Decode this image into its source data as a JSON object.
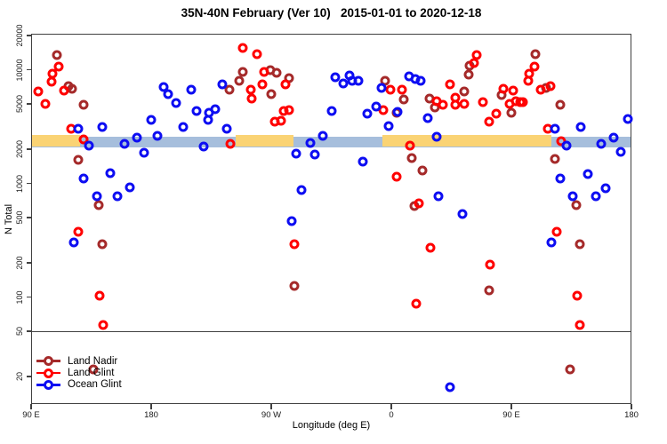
{
  "title": "35N-40N February (Ver 10)   2015-01-01 to 2020-12-18",
  "chart_data": {
    "type": "scatter",
    "title": "35N-40N February (Ver 10)   2015-01-01 to 2020-12-18",
    "xlabel": "Longitude (deg E)",
    "ylabel": "N Total",
    "x_axis": {
      "deg_span": 450,
      "note": "longitude axis wraps: starts at 90E, passes dateline, ends at 180",
      "ticks": [
        {
          "deg": 0,
          "label": "90 E"
        },
        {
          "deg": 90,
          "label": "180"
        },
        {
          "deg": 180,
          "label": "90 W"
        },
        {
          "deg": 270,
          "label": "0"
        },
        {
          "deg": 360,
          "label": "90 E"
        },
        {
          "deg": 450,
          "label": "180"
        }
      ]
    },
    "y_axis": {
      "scale": "log10",
      "log_top": 4.317,
      "log_bottom": 1.059,
      "ticks": [
        {
          "v": 20,
          "label": "20"
        },
        {
          "v": 50,
          "label": "50"
        },
        {
          "v": 100,
          "label": "100"
        },
        {
          "v": 200,
          "label": "200"
        },
        {
          "v": 500,
          "label": "500"
        },
        {
          "v": 1000,
          "label": "1000"
        },
        {
          "v": 2000,
          "label": "2000"
        },
        {
          "v": 5000,
          "label": "5000"
        },
        {
          "v": 10000,
          "label": "10000"
        },
        {
          "v": 20000,
          "label": "20000"
        }
      ]
    },
    "reference_line_y": 50,
    "bands": [
      {
        "name": "ocean-band",
        "color": "#A6BEDC",
        "value_range": [
          2060,
          2580
        ],
        "deg_segments": [
          [
            0,
            450
          ]
        ]
      },
      {
        "name": "land-band",
        "color": "#FAD374",
        "value_range": [
          2115,
          2650
        ],
        "deg_segments": [
          [
            0,
            36.7
          ],
          [
            153.3,
            196.7
          ],
          [
            263,
            390
          ]
        ]
      }
    ],
    "series": [
      {
        "name": "Land Nadir",
        "color": "#A52A2A",
        "points": [
          [
            19.5,
            13600
          ],
          [
            27.8,
            7130
          ],
          [
            30.7,
            6760
          ],
          [
            39.5,
            4920
          ],
          [
            35.5,
            1620
          ],
          [
            50.7,
            647
          ],
          [
            53.3,
            290
          ],
          [
            46.7,
            23
          ],
          [
            148.5,
            6640
          ],
          [
            158.9,
            9510
          ],
          [
            156.2,
            7950
          ],
          [
            179.3,
            9970
          ],
          [
            183.8,
            9390
          ],
          [
            180,
            6070
          ],
          [
            193.3,
            8430
          ],
          [
            197.1,
            125
          ],
          [
            265.1,
            8030
          ],
          [
            279,
            5470
          ],
          [
            274,
            4160
          ],
          [
            285.1,
            1680
          ],
          [
            287.3,
            632
          ],
          [
            293.3,
            1300
          ],
          [
            298.5,
            5610
          ],
          [
            302.7,
            4690
          ],
          [
            324.9,
            6440
          ],
          [
            328.5,
            10900
          ],
          [
            328.2,
            9140
          ],
          [
            343.3,
            114
          ],
          [
            352.7,
            6030
          ],
          [
            359.8,
            4180
          ],
          [
            378.2,
            13800
          ],
          [
            386.2,
            6950
          ],
          [
            392.9,
            1650
          ],
          [
            396.7,
            4920
          ],
          [
            404,
            23
          ],
          [
            408.5,
            647
          ],
          [
            411.1,
            290
          ]
        ]
      },
      {
        "name": "Land Glint",
        "color": "#FF0000",
        "points": [
          [
            20.7,
            10700
          ],
          [
            16.2,
            9170
          ],
          [
            15.5,
            7890
          ],
          [
            5.1,
            6470
          ],
          [
            10.5,
            5030
          ],
          [
            24.5,
            6590
          ],
          [
            30,
            3010
          ],
          [
            39.5,
            2420
          ],
          [
            35.1,
            373
          ],
          [
            51.1,
            103
          ],
          [
            53.8,
            57
          ],
          [
            149.3,
            2230
          ],
          [
            158.9,
            15600
          ],
          [
            169.5,
            13800
          ],
          [
            174.5,
            9620
          ],
          [
            173.3,
            7480
          ],
          [
            164.5,
            6710
          ],
          [
            165.1,
            5610
          ],
          [
            190.5,
            7390
          ],
          [
            189.5,
            4310
          ],
          [
            193.3,
            4420
          ],
          [
            187.3,
            3540
          ],
          [
            182.9,
            3480
          ],
          [
            197.1,
            290
          ],
          [
            263.8,
            4420
          ],
          [
            269.5,
            6640
          ],
          [
            278,
            6700
          ],
          [
            283.7,
            2150
          ],
          [
            273.7,
            1140
          ],
          [
            290.5,
            671
          ],
          [
            299.3,
            273
          ],
          [
            288.9,
            88
          ],
          [
            304,
            5280
          ],
          [
            308.5,
            4920
          ],
          [
            313.8,
            7390
          ],
          [
            318.2,
            5710
          ],
          [
            318.2,
            4920
          ],
          [
            324.9,
            4990
          ],
          [
            332.2,
            11400
          ],
          [
            333.8,
            13500
          ],
          [
            338.9,
            5160
          ],
          [
            343.3,
            3490
          ],
          [
            344,
            193
          ],
          [
            348.7,
            4130
          ],
          [
            354.2,
            6790
          ],
          [
            358.7,
            5030
          ],
          [
            361.5,
            6520
          ],
          [
            363.3,
            5280
          ],
          [
            366.9,
            5210
          ],
          [
            368.5,
            5160
          ],
          [
            372.9,
            7940
          ],
          [
            373.3,
            9230
          ],
          [
            377.3,
            10600
          ],
          [
            382,
            6710
          ],
          [
            389.3,
            7210
          ],
          [
            387.1,
            3010
          ],
          [
            397.3,
            2350
          ],
          [
            393.8,
            378
          ],
          [
            409.3,
            103
          ],
          [
            411.5,
            57
          ]
        ]
      },
      {
        "name": "Ocean Glint",
        "color": "#0D0DF2",
        "points": [
          [
            35.1,
            3040
          ],
          [
            43.5,
            2160
          ],
          [
            53.3,
            3130
          ],
          [
            31.8,
            303
          ],
          [
            39.5,
            1110
          ],
          [
            59.5,
            1230
          ],
          [
            49.3,
            776
          ],
          [
            64.9,
            767
          ],
          [
            73.8,
            918
          ],
          [
            70,
            2250
          ],
          [
            79.5,
            2540
          ],
          [
            84.5,
            1880
          ],
          [
            90,
            3640
          ],
          [
            94.5,
            2620
          ],
          [
            99.3,
            7050
          ],
          [
            102.7,
            6070
          ],
          [
            108.5,
            5070
          ],
          [
            114,
            3130
          ],
          [
            120,
            6640
          ],
          [
            124,
            4360
          ],
          [
            129.5,
            2120
          ],
          [
            132.9,
            3640
          ],
          [
            133.3,
            4160
          ],
          [
            137.8,
            4490
          ],
          [
            143.3,
            7390
          ],
          [
            146.7,
            3040
          ],
          [
            195.5,
            466
          ],
          [
            198.5,
            1830
          ],
          [
            202.9,
            875
          ],
          [
            209.5,
            2280
          ],
          [
            212.7,
            1800
          ],
          [
            218.9,
            2620
          ],
          [
            225.1,
            4360
          ],
          [
            228.2,
            8550
          ],
          [
            234,
            7570
          ],
          [
            238.9,
            8850
          ],
          [
            240.7,
            8030
          ],
          [
            245.1,
            8030
          ],
          [
            248.9,
            1560
          ],
          [
            252.2,
            4110
          ],
          [
            258.5,
            4760
          ],
          [
            262.9,
            6960
          ],
          [
            267.8,
            3190
          ],
          [
            274.7,
            4260
          ],
          [
            283.3,
            8690
          ],
          [
            288.2,
            8320
          ],
          [
            291.8,
            8030
          ],
          [
            297.3,
            3750
          ],
          [
            304,
            2560
          ],
          [
            305.5,
            776
          ],
          [
            323.3,
            541
          ],
          [
            314,
            16
          ],
          [
            390,
            303
          ],
          [
            392.9,
            3010
          ],
          [
            396.7,
            1110
          ],
          [
            401.1,
            2150
          ],
          [
            406.2,
            776
          ],
          [
            412.2,
            3130
          ],
          [
            417.3,
            1200
          ],
          [
            423.3,
            776
          ],
          [
            427.1,
            2230
          ],
          [
            430.7,
            906
          ],
          [
            436.7,
            2540
          ],
          [
            441.8,
            1910
          ],
          [
            447.1,
            3680
          ]
        ]
      }
    ],
    "legend": {
      "position": "bottom-left",
      "items": [
        "Land Nadir",
        "Land Glint",
        "Ocean Glint"
      ]
    }
  }
}
